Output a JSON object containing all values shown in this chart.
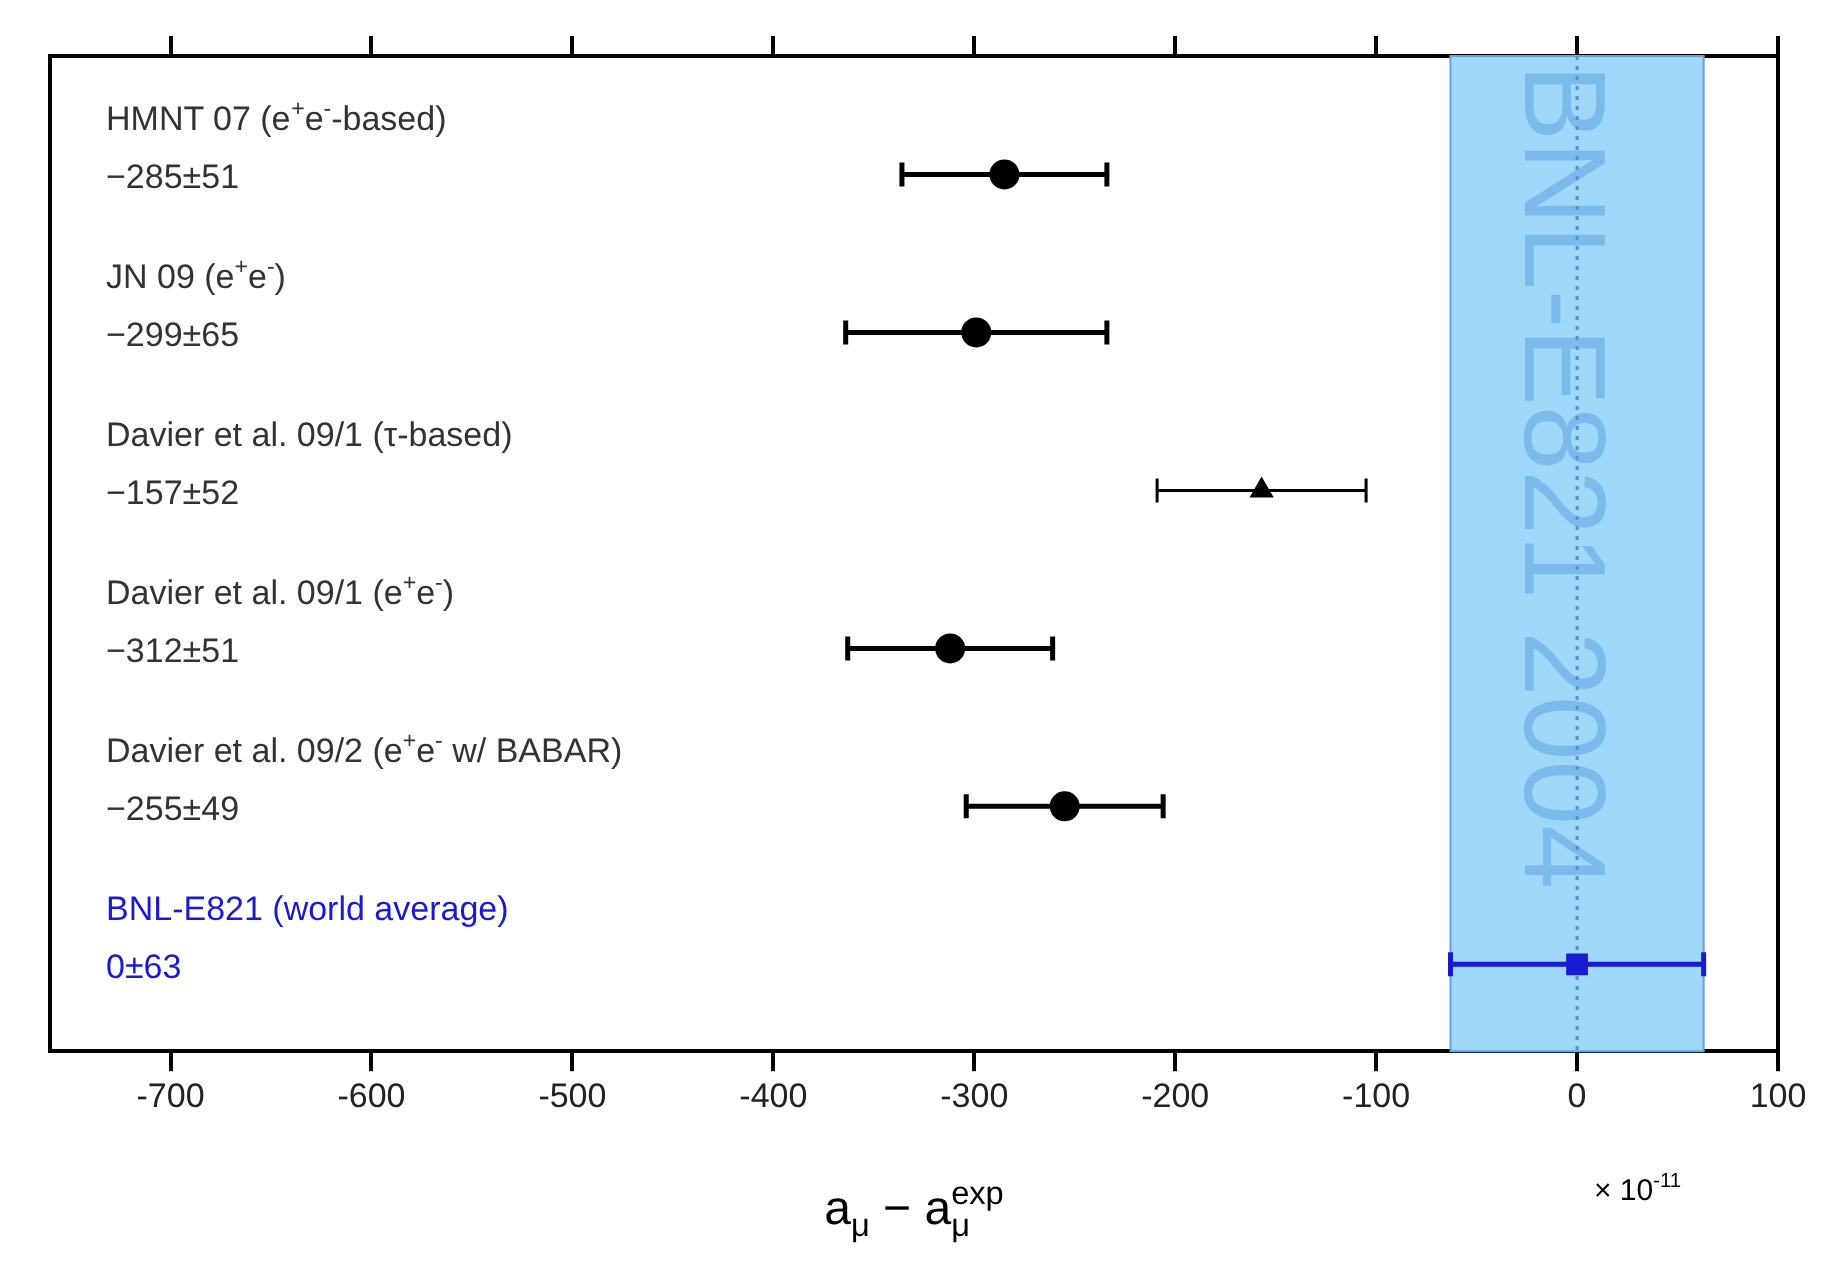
{
  "chart_data": {
    "type": "scatter",
    "orientation": "horizontal",
    "xlabel": "a$_{μ}$ − a$_{μ}$$^{exp}$",
    "categories": [
      "HMNT 07 (e$^{+}$e$^{-}$-based)",
      "JN 09 (e$^{+}$e$^{-}$)",
      "Davier et al. 09/1 (τ-based)",
      "Davier et al. 09/1 (e$^{+}$e$^{-}$)",
      "Davier et al. 09/2 (e$^{+}$e$^{-}$ w/ BABAR)",
      "BNL-E821 (world average)"
    ],
    "series": [
      {
        "color": "#000000",
        "marker": "circle",
        "values": [
          -285,
          -299,
          null,
          -312,
          -255,
          null
        ],
        "errors": [
          51,
          65,
          null,
          51,
          49,
          null
        ]
      },
      {
        "color": "#000000",
        "marker": "triangle",
        "values": [
          null,
          null,
          -157,
          null,
          null,
          null
        ],
        "errors": [
          null,
          null,
          52,
          null,
          null,
          null
        ]
      },
      {
        "color": "#1a1ad0",
        "marker": "square",
        "values": [
          null,
          null,
          null,
          null,
          null,
          0
        ],
        "errors": [
          null,
          null,
          null,
          null,
          null,
          63
        ]
      }
    ],
    "value_labels": [
      "−285±51",
      "−299±65",
      "−157±52",
      "−312±51",
      "−255±49",
      "0±63"
    ],
    "xlim": [
      -760,
      100
    ],
    "xticks": [
      -700,
      -600,
      -500,
      -400,
      -300,
      -200,
      -100,
      0,
      100
    ],
    "bands": [
      {
        "axis": "x",
        "from": -63,
        "to": 63,
        "label": "BNL-E821 2004",
        "color": "#9fd8f8"
      }
    ],
    "ref_lines": [
      {
        "axis": "x",
        "value": 0,
        "color": "#5a8fd0",
        "line_style": "dotted"
      }
    ],
    "annotations": [
      "× 10$^{-11}$"
    ],
    "tick_labels": "x",
    "grid": false,
    "legend": false
  }
}
